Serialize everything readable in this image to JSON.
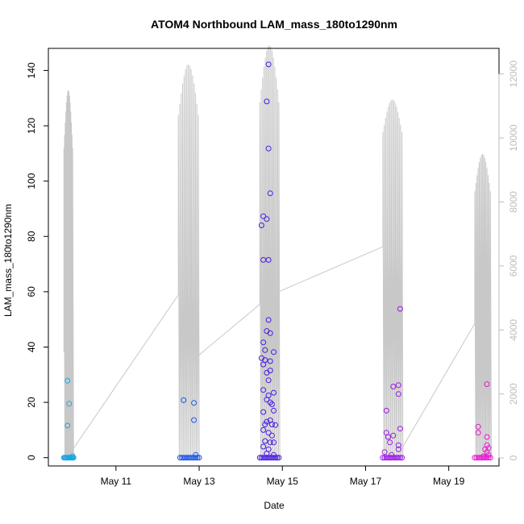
{
  "chart_data": {
    "type": "scatter",
    "title": "ATOM4 Northbound LAM_mass_180to1290nm",
    "xlabel": "Date",
    "ylabel": "LAM_mass_180to1290nm",
    "xlim": [
      "2019-05-09 09:00",
      "2019-05-20 05:00"
    ],
    "ylim": [
      -3,
      148
    ],
    "y2lim": [
      -250,
      12800
    ],
    "x_ticks": [
      {
        "date": "2019-05-11",
        "label": "May 11"
      },
      {
        "date": "2019-05-13",
        "label": "May 13"
      },
      {
        "date": "2019-05-15",
        "label": "May 15"
      },
      {
        "date": "2019-05-17",
        "label": "May 17"
      },
      {
        "date": "2019-05-19",
        "label": "May 19"
      }
    ],
    "y_ticks": [
      0,
      20,
      40,
      60,
      80,
      100,
      120,
      140
    ],
    "y2_ticks": [
      0,
      2000,
      4000,
      6000,
      8000,
      10000,
      12000
    ],
    "grid": false,
    "legend": "none",
    "colors": {
      "series_line": "#c8c8c8",
      "right_axis": "#bdbdbd",
      "frame": "#000000"
    },
    "series": [
      {
        "color": "#1aa7e6",
        "points": [
          [
            "2019-05-09 18:00",
            0
          ],
          [
            "2019-05-09 18:30",
            0
          ],
          [
            "2019-05-09 19:00",
            0
          ],
          [
            "2019-05-09 19:30",
            0
          ],
          [
            "2019-05-09 20:00",
            0
          ],
          [
            "2019-05-09 20:30",
            0
          ],
          [
            "2019-05-09 21:00",
            0
          ],
          [
            "2019-05-09 21:30",
            0
          ],
          [
            "2019-05-09 22:00",
            0
          ],
          [
            "2019-05-09 22:30",
            0
          ],
          [
            "2019-05-09 23:00",
            0
          ],
          [
            "2019-05-09 23:30",
            0
          ],
          [
            "2019-05-09 20:00",
            27.8
          ],
          [
            "2019-05-09 21:00",
            19.5
          ],
          [
            "2019-05-09 20:00",
            11.6
          ],
          [
            "2019-05-09 23:00",
            0.5
          ]
        ]
      },
      {
        "color": "#1a55e6",
        "points": [
          [
            "2019-05-12 13:00",
            0
          ],
          [
            "2019-05-12 14:00",
            0
          ],
          [
            "2019-05-12 15:00",
            0
          ],
          [
            "2019-05-12 16:00",
            0
          ],
          [
            "2019-05-12 17:00",
            0
          ],
          [
            "2019-05-12 18:00",
            0
          ],
          [
            "2019-05-12 19:00",
            0
          ],
          [
            "2019-05-12 20:00",
            0
          ],
          [
            "2019-05-12 21:00",
            0
          ],
          [
            "2019-05-12 22:00",
            0
          ],
          [
            "2019-05-12 23:00",
            0
          ],
          [
            "2019-05-13 00:00",
            0
          ],
          [
            "2019-05-12 15:00",
            20.8
          ],
          [
            "2019-05-12 21:00",
            19.8
          ],
          [
            "2019-05-12 21:00",
            13.6
          ],
          [
            "2019-05-12 22:00",
            1.0
          ]
        ]
      },
      {
        "color": "#4a1ae6",
        "points": [
          [
            "2019-05-14 11:00",
            0
          ],
          [
            "2019-05-14 12:00",
            0
          ],
          [
            "2019-05-14 13:00",
            0
          ],
          [
            "2019-05-14 14:00",
            0
          ],
          [
            "2019-05-14 15:00",
            0
          ],
          [
            "2019-05-14 16:00",
            0
          ],
          [
            "2019-05-14 17:00",
            0
          ],
          [
            "2019-05-14 18:00",
            0
          ],
          [
            "2019-05-14 19:00",
            0
          ],
          [
            "2019-05-14 20:00",
            0
          ],
          [
            "2019-05-14 21:00",
            0
          ],
          [
            "2019-05-14 22:00",
            0
          ],
          [
            "2019-05-14 16:00",
            142.2
          ],
          [
            "2019-05-14 15:00",
            128.8
          ],
          [
            "2019-05-14 16:00",
            111.8
          ],
          [
            "2019-05-14 17:00",
            95.6
          ],
          [
            "2019-05-14 13:00",
            87.3
          ],
          [
            "2019-05-14 15:00",
            86.3
          ],
          [
            "2019-05-14 12:00",
            84.0
          ],
          [
            "2019-05-14 13:00",
            71.5
          ],
          [
            "2019-05-14 16:00",
            71.5
          ],
          [
            "2019-05-14 16:00",
            49.8
          ],
          [
            "2019-05-14 15:00",
            45.8
          ],
          [
            "2019-05-14 17:00",
            45.0
          ],
          [
            "2019-05-14 13:00",
            41.7
          ],
          [
            "2019-05-14 14:00",
            38.9
          ],
          [
            "2019-05-14 19:00",
            38.2
          ],
          [
            "2019-05-14 12:00",
            36.0
          ],
          [
            "2019-05-14 14:00",
            35.3
          ],
          [
            "2019-05-14 17:00",
            34.9
          ],
          [
            "2019-05-14 13:00",
            33.7
          ],
          [
            "2019-05-14 15:00",
            30.7
          ],
          [
            "2019-05-14 17:00",
            31.5
          ],
          [
            "2019-05-14 16:00",
            28.0
          ],
          [
            "2019-05-14 13:00",
            24.5
          ],
          [
            "2019-05-14 19:00",
            23.5
          ],
          [
            "2019-05-14 16:00",
            22.5
          ],
          [
            "2019-05-14 15:00",
            21.0
          ],
          [
            "2019-05-14 17:00",
            20.0
          ],
          [
            "2019-05-14 18:00",
            19.3
          ],
          [
            "2019-05-14 13:00",
            16.5
          ],
          [
            "2019-05-14 19:00",
            17.0
          ],
          [
            "2019-05-14 15:00",
            13.0
          ],
          [
            "2019-05-14 17:00",
            13.5
          ],
          [
            "2019-05-14 14:00",
            12.0
          ],
          [
            "2019-05-14 18:00",
            12.0
          ],
          [
            "2019-05-14 20:00",
            11.8
          ],
          [
            "2019-05-14 13:00",
            10.0
          ],
          [
            "2019-05-14 16:00",
            9.0
          ],
          [
            "2019-05-14 18:00",
            8.0
          ],
          [
            "2019-05-14 14:00",
            6.0
          ],
          [
            "2019-05-14 17:00",
            5.5
          ],
          [
            "2019-05-14 19:00",
            5.5
          ],
          [
            "2019-05-14 13:00",
            4.0
          ],
          [
            "2019-05-14 16:00",
            3.0
          ],
          [
            "2019-05-14 15:00",
            1.5
          ],
          [
            "2019-05-14 19:00",
            1.0
          ]
        ]
      },
      {
        "color": "#9b1ae6",
        "points": [
          [
            "2019-05-17 10:00",
            0
          ],
          [
            "2019-05-17 11:00",
            0
          ],
          [
            "2019-05-17 12:00",
            0
          ],
          [
            "2019-05-17 13:00",
            0
          ],
          [
            "2019-05-17 14:00",
            0
          ],
          [
            "2019-05-17 15:00",
            0
          ],
          [
            "2019-05-17 16:00",
            0
          ],
          [
            "2019-05-17 17:00",
            0
          ],
          [
            "2019-05-17 18:00",
            0
          ],
          [
            "2019-05-17 19:00",
            0
          ],
          [
            "2019-05-17 20:00",
            0
          ],
          [
            "2019-05-17 21:00",
            0
          ],
          [
            "2019-05-17 20:00",
            53.8
          ],
          [
            "2019-05-17 16:00",
            25.7
          ],
          [
            "2019-05-17 19:00",
            26.2
          ],
          [
            "2019-05-17 19:00",
            23.0
          ],
          [
            "2019-05-17 12:00",
            17.0
          ],
          [
            "2019-05-17 20:00",
            10.5
          ],
          [
            "2019-05-17 12:00",
            9.0
          ],
          [
            "2019-05-17 13:00",
            7.5
          ],
          [
            "2019-05-17 16:00",
            8.0
          ],
          [
            "2019-05-17 14:00",
            5.5
          ],
          [
            "2019-05-17 19:00",
            4.5
          ],
          [
            "2019-05-17 19:00",
            3.0
          ],
          [
            "2019-05-17 11:00",
            2.0
          ],
          [
            "2019-05-17 15:00",
            1.0
          ]
        ]
      },
      {
        "color": "#e61ad0",
        "points": [
          [
            "2019-05-19 15:00",
            0
          ],
          [
            "2019-05-19 16:00",
            0
          ],
          [
            "2019-05-19 17:00",
            0
          ],
          [
            "2019-05-19 18:00",
            0
          ],
          [
            "2019-05-19 19:00",
            0
          ],
          [
            "2019-05-19 20:00",
            0
          ],
          [
            "2019-05-19 21:00",
            0
          ],
          [
            "2019-05-19 22:00",
            0
          ],
          [
            "2019-05-19 23:00",
            0
          ],
          [
            "2019-05-20 00:00",
            0
          ],
          [
            "2019-05-19 22:00",
            26.6
          ],
          [
            "2019-05-19 17:00",
            11.2
          ],
          [
            "2019-05-19 17:00",
            9.0
          ],
          [
            "2019-05-19 22:00",
            7.5
          ],
          [
            "2019-05-19 22:00",
            4.5
          ],
          [
            "2019-05-19 23:00",
            3.5
          ],
          [
            "2019-05-19 21:00",
            3.0
          ],
          [
            "2019-05-19 22:00",
            2.0
          ],
          [
            "2019-05-19 23:00",
            1.0
          ],
          [
            "2019-05-19 20:00",
            0.5
          ]
        ]
      }
    ],
    "secondary_series": [
      {
        "bursts": [
          {
            "start": "2019-05-09 18:00",
            "end": "2019-05-09 23:00",
            "base": 3300,
            "peak": 11500
          },
          {
            "start": "2019-05-12 12:00",
            "end": "2019-05-12 23:30",
            "base": 5100,
            "peak": 12300
          },
          {
            "start": "2019-05-14 11:00",
            "end": "2019-05-14 22:00",
            "base": 4800,
            "peak": 12900
          },
          {
            "start": "2019-05-17 10:00",
            "end": "2019-05-17 21:00",
            "base": 6600,
            "peak": 11200
          },
          {
            "start": "2019-05-19 15:00",
            "end": "2019-05-20 00:00",
            "base": 4200,
            "peak": 9500
          }
        ],
        "links": [
          [
            "2019-05-09 23:30",
            300,
            "2019-05-12 12:00",
            5100
          ],
          [
            "2019-05-12 23:30",
            3200,
            "2019-05-14 11:00",
            4800
          ],
          [
            "2019-05-14 22:00",
            5200,
            "2019-05-17 10:00",
            6600
          ],
          [
            "2019-05-17 21:00",
            300,
            "2019-05-19 15:00",
            4200
          ]
        ]
      }
    ]
  }
}
